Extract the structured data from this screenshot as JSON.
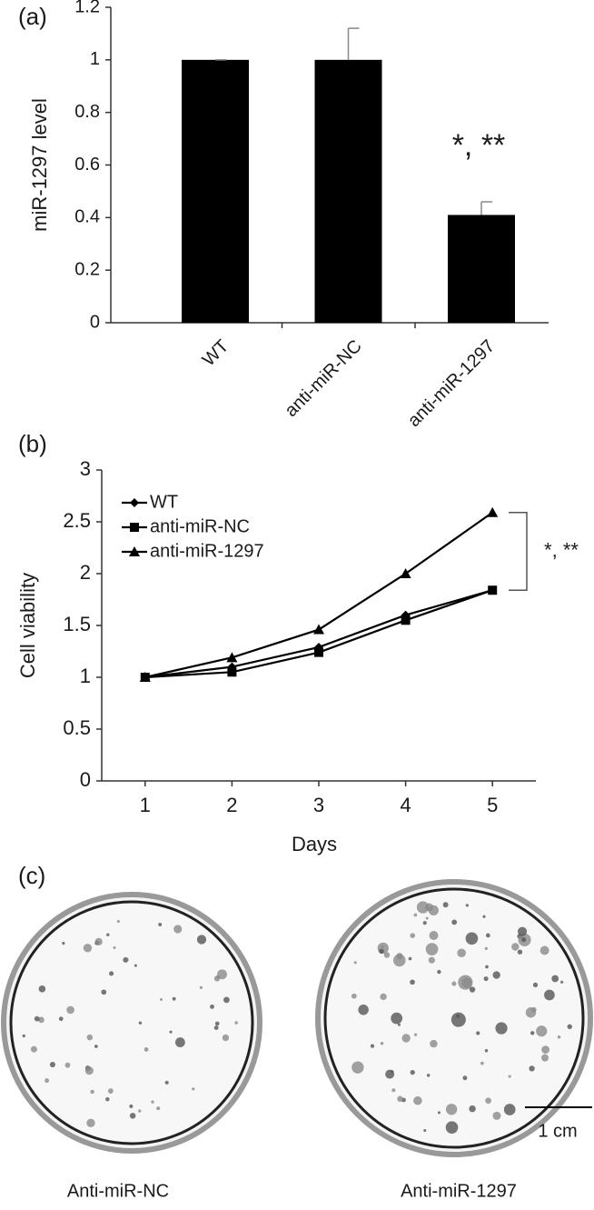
{
  "chart_data": [
    {
      "type": "bar",
      "panel_label": "(a)",
      "ylabel": "miR-1297 level",
      "categories": [
        "WT",
        "anti-miR-NC",
        "anti-miR-1297"
      ],
      "values": [
        1.0,
        1.0,
        0.41
      ],
      "errors": [
        0,
        0.12,
        0.05
      ],
      "color": "#000000",
      "ylim": [
        0,
        1.2
      ],
      "yticks": [
        0,
        0.2,
        0.4,
        0.6,
        0.8,
        1,
        1.2
      ],
      "annotation": "*, **"
    },
    {
      "type": "line",
      "panel_label": "(b)",
      "xlabel": "Days",
      "ylabel": "Cell viability",
      "x": [
        1,
        2,
        3,
        4,
        5
      ],
      "xlim": [
        0.5,
        5.5
      ],
      "xticks": [
        1,
        2,
        3,
        4,
        5
      ],
      "ylim": [
        0,
        3
      ],
      "yticks": [
        0,
        0.5,
        1,
        1.5,
        2,
        2.5,
        3
      ],
      "legend": "upper left",
      "series": [
        {
          "name": "WT",
          "color": "#000000",
          "marker": "diamond",
          "values": [
            1,
            1.1,
            1.29,
            1.6,
            1.84
          ]
        },
        {
          "name": "anti-miR-NC",
          "color": "#000000",
          "marker": "square",
          "values": [
            1,
            1.05,
            1.24,
            1.55,
            1.84
          ]
        },
        {
          "name": "anti-miR-1297",
          "color": "#000000",
          "marker": "triangle",
          "values": [
            1,
            1.19,
            1.46,
            2.0,
            2.59
          ]
        }
      ],
      "annotation": "*, **"
    }
  ],
  "panel_c": {
    "panel_label": "(c)",
    "images": [
      "Anti-miR-NC",
      "Anti-miR-1297"
    ],
    "scale_bar": "1 cm"
  }
}
